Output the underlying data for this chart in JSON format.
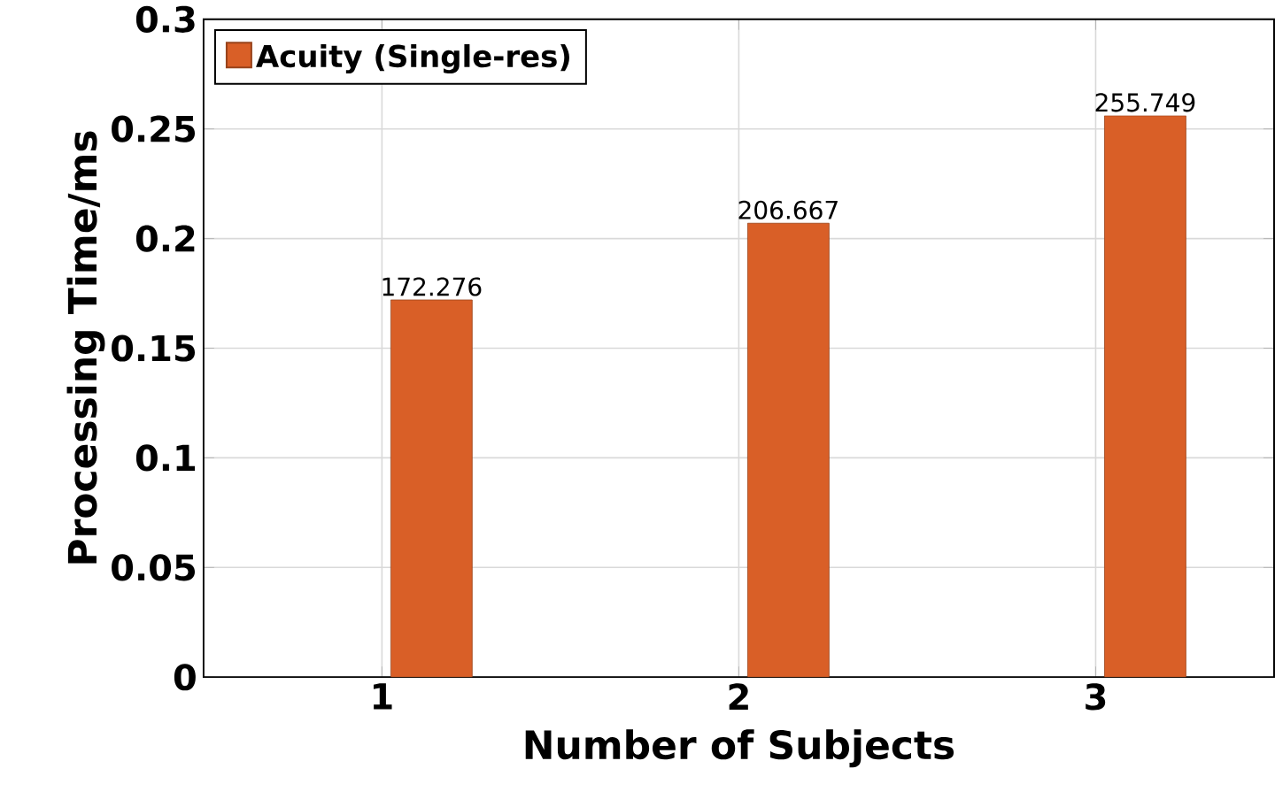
{
  "chart_data": {
    "type": "bar",
    "xlabel": "Number of Subjects",
    "ylabel": "Processing Time/ms",
    "categories": [
      "1",
      "2",
      "3"
    ],
    "series": [
      {
        "name": "Acuity (Single-res)",
        "color": "#d95f27",
        "values": [
          0.172,
          0.207,
          0.256
        ]
      }
    ],
    "annotations": [
      {
        "text": "172.276",
        "x": "1",
        "y": 0.172
      },
      {
        "text": "206.667",
        "x": "2",
        "y": 0.207
      },
      {
        "text": "255.749",
        "x": "3",
        "y": 0.256
      }
    ],
    "ylim": [
      0,
      0.3
    ],
    "yticks": [
      0,
      0.05,
      0.1,
      0.15,
      0.2,
      0.25,
      0.3
    ],
    "grid": true,
    "legend": "top left"
  }
}
